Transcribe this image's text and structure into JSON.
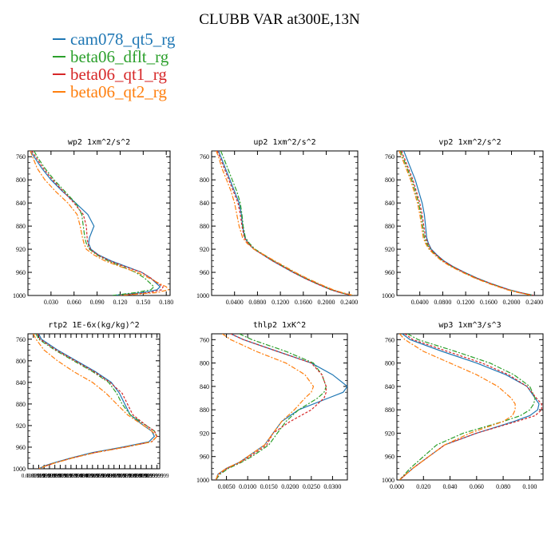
{
  "figure": {
    "title": "CLUBB VAR at300E,13N"
  },
  "legend": [
    {
      "label": "cam078_qt5_rg",
      "color": "#1f77b4"
    },
    {
      "label": "beta06_dflt_rg",
      "color": "#2ca02c"
    },
    {
      "label": "beta06_qt1_rg",
      "color": "#d62728"
    },
    {
      "label": "beta06_qt2_rg",
      "color": "#ff7f0e"
    }
  ],
  "chart_data": [
    {
      "type": "line",
      "title": "wp2   1xm^2/s^2",
      "ylim": [
        1000,
        750
      ],
      "xlim": [
        0,
        0.185
      ],
      "yticks": [
        760,
        800,
        840,
        880,
        920,
        960,
        1000
      ],
      "xticks": [
        0.03,
        0.06,
        0.09,
        0.12,
        0.15,
        0.18
      ],
      "xtick_labels": [
        "0.030",
        "0.060",
        "0.090",
        "0.120",
        "0.150",
        "0.180"
      ],
      "y": [
        750,
        760,
        780,
        800,
        820,
        840,
        860,
        880,
        900,
        910,
        920,
        930,
        940,
        950,
        960,
        970,
        980,
        985,
        990,
        995,
        1000
      ],
      "series": [
        {
          "name": "cam078_qt5_rg",
          "color": "#1f77b4",
          "dash": "",
          "x": [
            0.003,
            0.008,
            0.018,
            0.03,
            0.045,
            0.062,
            0.078,
            0.086,
            0.08,
            0.079,
            0.082,
            0.092,
            0.108,
            0.128,
            0.148,
            0.16,
            0.168,
            0.172,
            0.168,
            0.15,
            0.11
          ]
        },
        {
          "name": "beta06_dflt_rg",
          "color": "#2ca02c",
          "dash": "6,2,2,2",
          "x": [
            0.008,
            0.012,
            0.022,
            0.034,
            0.048,
            0.062,
            0.07,
            0.072,
            0.074,
            0.076,
            0.08,
            0.09,
            0.104,
            0.122,
            0.14,
            0.152,
            0.16,
            0.164,
            0.16,
            0.14,
            0.11
          ]
        },
        {
          "name": "beta06_qt1_rg",
          "color": "#d62728",
          "dash": "3,2",
          "x": [
            0.005,
            0.01,
            0.02,
            0.032,
            0.046,
            0.06,
            0.072,
            0.076,
            0.077,
            0.078,
            0.081,
            0.091,
            0.106,
            0.126,
            0.148,
            0.16,
            0.17,
            0.176,
            0.174,
            0.158,
            0.12
          ]
        },
        {
          "name": "beta06_qt2_rg",
          "color": "#ff7f0e",
          "dash": "6,2,2,2",
          "x": [
            0.003,
            0.006,
            0.012,
            0.022,
            0.036,
            0.052,
            0.064,
            0.068,
            0.071,
            0.073,
            0.076,
            0.086,
            0.1,
            0.12,
            0.142,
            0.158,
            0.172,
            0.18,
            0.183,
            0.168,
            0.12
          ]
        }
      ]
    },
    {
      "type": "line",
      "title": "up2   1xm^2/s^2",
      "ylim": [
        1000,
        750
      ],
      "xlim": [
        0,
        0.255
      ],
      "yticks": [
        760,
        800,
        840,
        880,
        920,
        960,
        1000
      ],
      "xticks": [
        0.04,
        0.08,
        0.12,
        0.16,
        0.2,
        0.24
      ],
      "xtick_labels": [
        "0.0400",
        "0.0800",
        "0.1200",
        "0.1600",
        "0.2000",
        "0.2400"
      ],
      "y": [
        750,
        760,
        780,
        800,
        820,
        840,
        860,
        880,
        900,
        910,
        920,
        930,
        940,
        950,
        960,
        970,
        980,
        990,
        995,
        1000
      ],
      "series": [
        {
          "name": "cam078_qt5_rg",
          "color": "#1f77b4",
          "dash": "",
          "x": [
            0.012,
            0.016,
            0.024,
            0.032,
            0.04,
            0.048,
            0.052,
            0.054,
            0.058,
            0.064,
            0.074,
            0.09,
            0.106,
            0.124,
            0.142,
            0.162,
            0.184,
            0.208,
            0.224,
            0.245
          ]
        },
        {
          "name": "beta06_dflt_rg",
          "color": "#2ca02c",
          "dash": "6,2,2,2",
          "x": [
            0.016,
            0.02,
            0.028,
            0.036,
            0.044,
            0.05,
            0.053,
            0.055,
            0.059,
            0.066,
            0.076,
            0.092,
            0.108,
            0.126,
            0.144,
            0.164,
            0.186,
            0.21,
            0.226,
            0.245
          ]
        },
        {
          "name": "beta06_qt1_rg",
          "color": "#d62728",
          "dash": "3,2",
          "x": [
            0.01,
            0.014,
            0.022,
            0.03,
            0.038,
            0.046,
            0.05,
            0.053,
            0.057,
            0.064,
            0.074,
            0.09,
            0.106,
            0.124,
            0.142,
            0.162,
            0.184,
            0.208,
            0.224,
            0.245
          ]
        },
        {
          "name": "beta06_qt2_rg",
          "color": "#ff7f0e",
          "dash": "6,2,2,2",
          "x": [
            0.008,
            0.012,
            0.018,
            0.026,
            0.034,
            0.04,
            0.044,
            0.048,
            0.054,
            0.062,
            0.074,
            0.092,
            0.11,
            0.128,
            0.146,
            0.166,
            0.188,
            0.212,
            0.228,
            0.248
          ]
        }
      ]
    },
    {
      "type": "line",
      "title": "vp2   1xm^2/s^2",
      "ylim": [
        1000,
        750
      ],
      "xlim": [
        0,
        0.255
      ],
      "yticks": [
        760,
        800,
        840,
        880,
        920,
        960,
        1000
      ],
      "xticks": [
        0.04,
        0.08,
        0.12,
        0.16,
        0.2,
        0.24
      ],
      "xtick_labels": [
        "0.0400",
        "0.0800",
        "0.1200",
        "0.1600",
        "0.2000",
        "0.2400"
      ],
      "y": [
        750,
        760,
        780,
        800,
        820,
        840,
        860,
        880,
        900,
        910,
        920,
        930,
        940,
        950,
        960,
        970,
        980,
        990,
        995,
        1000
      ],
      "series": [
        {
          "name": "cam078_qt5_rg",
          "color": "#1f77b4",
          "dash": "",
          "x": [
            0.012,
            0.016,
            0.024,
            0.032,
            0.038,
            0.044,
            0.048,
            0.05,
            0.052,
            0.055,
            0.06,
            0.07,
            0.082,
            0.098,
            0.118,
            0.14,
            0.166,
            0.196,
            0.216,
            0.24
          ]
        },
        {
          "name": "beta06_dflt_rg",
          "color": "#2ca02c",
          "dash": "6,2,2,2",
          "x": [
            0.006,
            0.01,
            0.018,
            0.026,
            0.032,
            0.038,
            0.042,
            0.045,
            0.048,
            0.052,
            0.058,
            0.068,
            0.08,
            0.096,
            0.116,
            0.138,
            0.164,
            0.194,
            0.214,
            0.238
          ]
        },
        {
          "name": "beta06_qt1_rg",
          "color": "#d62728",
          "dash": "3,2",
          "x": [
            0.008,
            0.012,
            0.02,
            0.028,
            0.034,
            0.04,
            0.044,
            0.047,
            0.05,
            0.054,
            0.059,
            0.069,
            0.081,
            0.097,
            0.117,
            0.139,
            0.165,
            0.195,
            0.215,
            0.239
          ]
        },
        {
          "name": "beta06_qt2_rg",
          "color": "#ff7f0e",
          "dash": "6,2,2,2",
          "x": [
            0.004,
            0.008,
            0.016,
            0.024,
            0.03,
            0.036,
            0.04,
            0.043,
            0.046,
            0.05,
            0.056,
            0.066,
            0.078,
            0.094,
            0.114,
            0.136,
            0.162,
            0.192,
            0.212,
            0.236
          ]
        }
      ]
    },
    {
      "type": "line",
      "title": "rtp2   1E-6x(kg/kg)^2",
      "ylim": [
        1000,
        750
      ],
      "xlim": [
        0,
        0.98
      ],
      "yticks": [
        760,
        800,
        840,
        880,
        920,
        960,
        1000
      ],
      "xticks": [
        0.04,
        0.08,
        0.12,
        0.16,
        0.2,
        0.24,
        0.28,
        0.32,
        0.36,
        0.4,
        0.44,
        0.48,
        0.52,
        0.56,
        0.6,
        0.64,
        0.68,
        0.72,
        0.76,
        0.8,
        0.84,
        0.88,
        0.92,
        0.96
      ],
      "xtick_labels": [
        "0.0399999",
        "0.0799999",
        "0.1199999",
        "0.1599999",
        "0.1999999",
        "0.2399999",
        "0.2799999",
        "0.3199999",
        "0.3599999",
        "0.3999999",
        "0.4399999",
        "0.4799999",
        "0.5199999",
        "0.5599999",
        "0.5999999",
        "0.6399999",
        "0.6799999",
        "0.7199999",
        "0.7599999",
        "0.7999999",
        "0.8399999",
        "0.8799999",
        "0.9199999",
        "0.9599999"
      ],
      "y": [
        750,
        760,
        780,
        800,
        820,
        840,
        860,
        880,
        900,
        920,
        930,
        940,
        950,
        960,
        970,
        980,
        990,
        995,
        1000
      ],
      "series": [
        {
          "name": "cam078_qt5_rg",
          "color": "#1f77b4",
          "dash": "",
          "x": [
            0.08,
            0.1,
            0.22,
            0.36,
            0.5,
            0.62,
            0.68,
            0.72,
            0.76,
            0.86,
            0.92,
            0.94,
            0.9,
            0.7,
            0.48,
            0.32,
            0.18,
            0.12,
            0.08
          ]
        },
        {
          "name": "beta06_dflt_rg",
          "color": "#2ca02c",
          "dash": "6,2,2,2",
          "x": [
            0.06,
            0.08,
            0.2,
            0.34,
            0.48,
            0.6,
            0.66,
            0.7,
            0.76,
            0.88,
            0.94,
            0.96,
            0.92,
            0.72,
            0.5,
            0.33,
            0.19,
            0.13,
            0.08
          ]
        },
        {
          "name": "beta06_qt1_rg",
          "color": "#d62728",
          "dash": "3,2",
          "x": [
            0.07,
            0.09,
            0.21,
            0.35,
            0.49,
            0.61,
            0.7,
            0.74,
            0.78,
            0.88,
            0.94,
            0.96,
            0.92,
            0.72,
            0.5,
            0.33,
            0.19,
            0.13,
            0.08
          ]
        },
        {
          "name": "beta06_qt2_rg",
          "color": "#ff7f0e",
          "dash": "6,2,2,2",
          "x": [
            0.04,
            0.06,
            0.12,
            0.22,
            0.34,
            0.48,
            0.58,
            0.66,
            0.74,
            0.86,
            0.92,
            0.96,
            0.92,
            0.72,
            0.5,
            0.33,
            0.19,
            0.13,
            0.08
          ]
        }
      ]
    },
    {
      "type": "line",
      "title": "thlp2   1xK^2",
      "ylim": [
        1000,
        750
      ],
      "xlim": [
        0.0015,
        0.0335
      ],
      "yticks": [
        760,
        800,
        840,
        880,
        920,
        960,
        1000
      ],
      "xticks": [
        0.005,
        0.01,
        0.015,
        0.02,
        0.025,
        0.03
      ],
      "xtick_labels": [
        "0.0050",
        "0.0100",
        "0.0150",
        "0.0200",
        "0.0250",
        "0.0300"
      ],
      "y": [
        750,
        760,
        780,
        800,
        820,
        840,
        850,
        860,
        880,
        900,
        920,
        940,
        960,
        970,
        980,
        990,
        1000
      ],
      "series": [
        {
          "name": "cam078_qt5_rg",
          "color": "#1f77b4",
          "dash": "",
          "x": [
            0.006,
            0.009,
            0.017,
            0.025,
            0.03,
            0.0335,
            0.0325,
            0.029,
            0.022,
            0.018,
            0.016,
            0.014,
            0.01,
            0.008,
            0.005,
            0.003,
            0.0025
          ]
        },
        {
          "name": "beta06_dflt_rg",
          "color": "#2ca02c",
          "dash": "6,2,2,2",
          "x": [
            0.008,
            0.011,
            0.019,
            0.0255,
            0.0275,
            0.0285,
            0.028,
            0.0265,
            0.022,
            0.019,
            0.017,
            0.015,
            0.011,
            0.0085,
            0.0055,
            0.0035,
            0.0025
          ]
        },
        {
          "name": "beta06_qt1_rg",
          "color": "#d62728",
          "dash": "3,2",
          "x": [
            0.006,
            0.009,
            0.017,
            0.025,
            0.0275,
            0.0285,
            0.0285,
            0.028,
            0.025,
            0.02,
            0.016,
            0.0145,
            0.0105,
            0.0082,
            0.0052,
            0.0032,
            0.0025
          ]
        },
        {
          "name": "beta06_qt2_rg",
          "color": "#ff7f0e",
          "dash": "6,2,2,2",
          "x": [
            0.004,
            0.006,
            0.012,
            0.019,
            0.0235,
            0.0255,
            0.025,
            0.0235,
            0.021,
            0.018,
            0.016,
            0.014,
            0.01,
            0.008,
            0.005,
            0.003,
            0.0025
          ]
        }
      ]
    },
    {
      "type": "line",
      "title": "wp3   1xm^3/s^3",
      "ylim": [
        1000,
        750
      ],
      "xlim": [
        0,
        0.11
      ],
      "yticks": [
        760,
        800,
        840,
        880,
        920,
        960,
        1000
      ],
      "xticks": [
        0.0,
        0.02,
        0.04,
        0.06,
        0.08,
        0.1
      ],
      "xtick_labels": [
        "0.000",
        "0.020",
        "0.040",
        "0.060",
        "0.080",
        "0.100"
      ],
      "y": [
        750,
        760,
        780,
        800,
        820,
        840,
        860,
        870,
        880,
        890,
        900,
        920,
        940,
        960,
        980,
        1000
      ],
      "series": [
        {
          "name": "cam078_qt5_rg",
          "color": "#1f77b4",
          "dash": "",
          "x": [
            0.004,
            0.01,
            0.034,
            0.06,
            0.082,
            0.098,
            0.104,
            0.107,
            0.106,
            0.1,
            0.088,
            0.06,
            0.036,
            0.024,
            0.012,
            0.002
          ]
        },
        {
          "name": "beta06_dflt_rg",
          "color": "#2ca02c",
          "dash": "6,2,2,2",
          "x": [
            0.008,
            0.016,
            0.044,
            0.07,
            0.088,
            0.1,
            0.104,
            0.103,
            0.1,
            0.093,
            0.08,
            0.05,
            0.03,
            0.02,
            0.01,
            0.002
          ]
        },
        {
          "name": "beta06_qt1_rg",
          "color": "#d62728",
          "dash": "3,2",
          "x": [
            0.006,
            0.012,
            0.038,
            0.064,
            0.084,
            0.098,
            0.105,
            0.109,
            0.109,
            0.104,
            0.09,
            0.06,
            0.036,
            0.024,
            0.012,
            0.002
          ]
        },
        {
          "name": "beta06_qt2_rg",
          "color": "#ff7f0e",
          "dash": "6,2,2,2",
          "x": [
            0.002,
            0.006,
            0.02,
            0.04,
            0.06,
            0.076,
            0.086,
            0.089,
            0.089,
            0.087,
            0.08,
            0.055,
            0.036,
            0.024,
            0.012,
            0.002
          ]
        }
      ]
    }
  ]
}
